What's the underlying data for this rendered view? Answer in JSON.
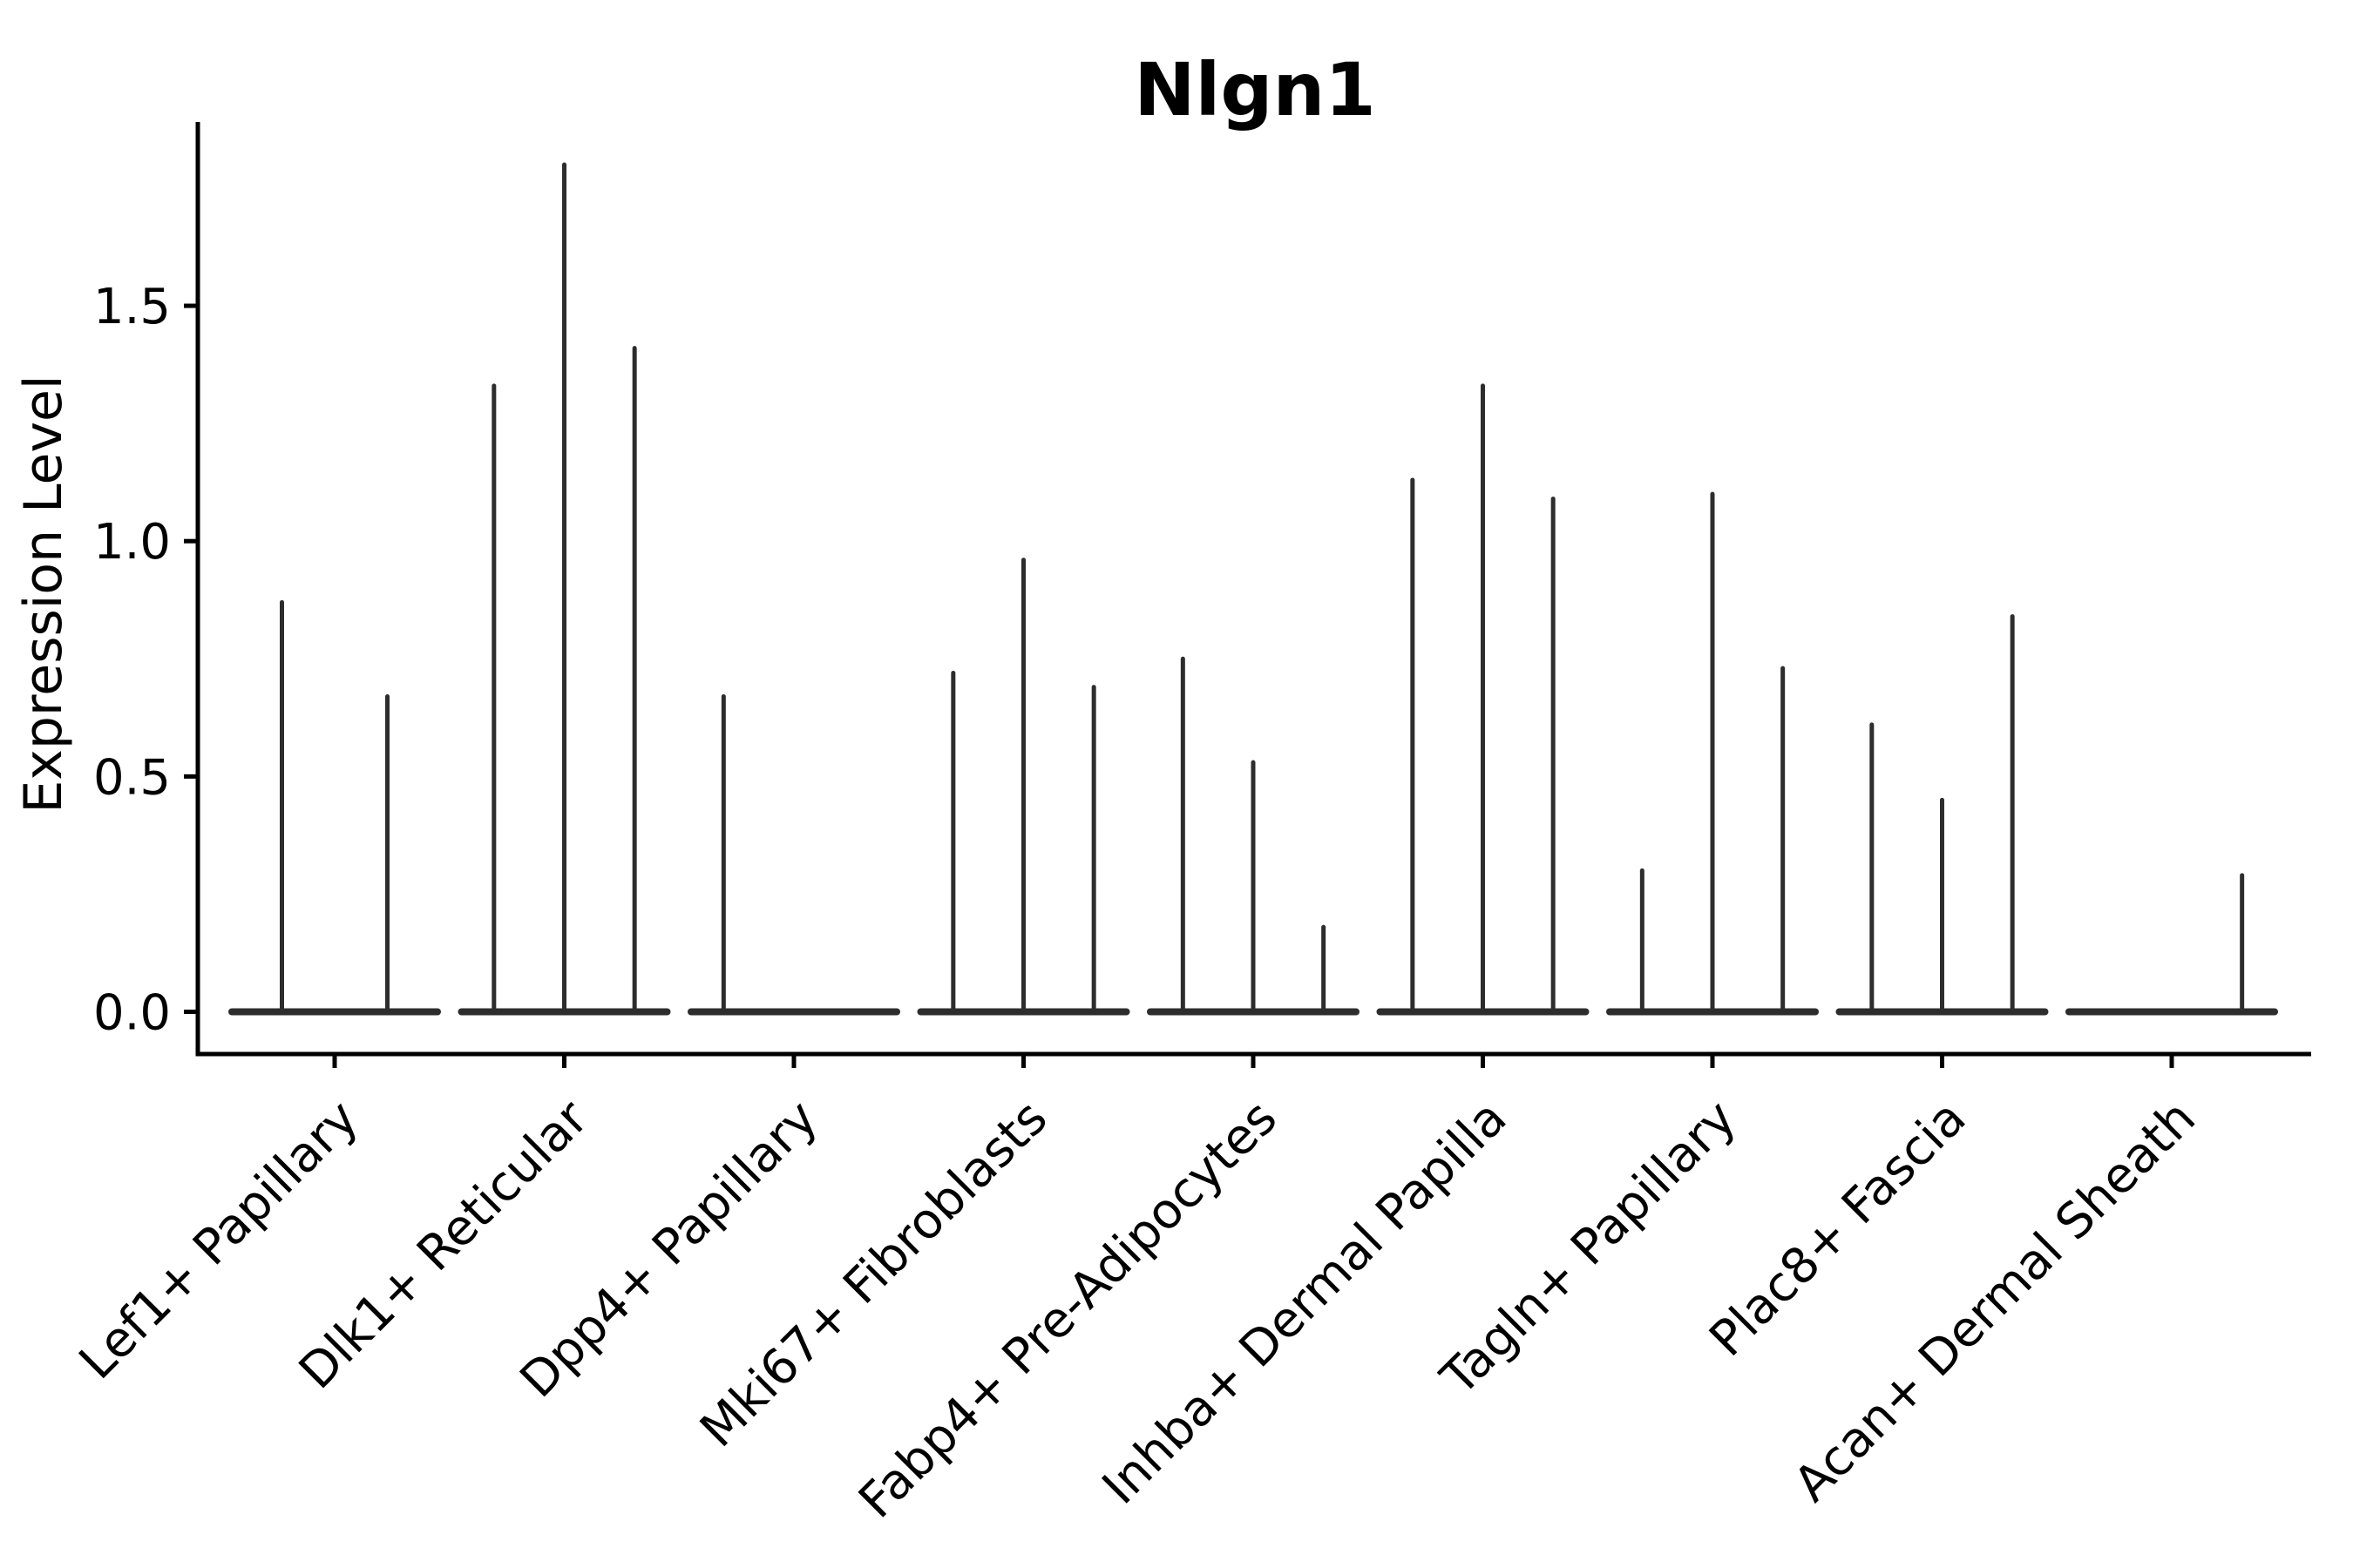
{
  "chart_data": {
    "type": "violin",
    "title": "Nlgn1",
    "xlabel": "",
    "ylabel": "Expression Level",
    "yticks": [
      0.0,
      0.5,
      1.0,
      1.5
    ],
    "ytick_labels": [
      "0.0",
      "0.5",
      "1.0",
      "1.5"
    ],
    "ylim": [
      -0.09,
      1.89
    ],
    "grid": false,
    "legend": "none",
    "x_label_rotation_deg": 45,
    "description": "Violin plot of Nlgn1 expression level per fibroblast cell-type cluster; each cluster slot contains 1-3 extremely narrow violins (bulk of density at 0 with a thin tail up to the max expression value).",
    "categories": [
      {
        "label": "Lef1+ Papillary",
        "violin_max_values": [
          0.87,
          0.67
        ]
      },
      {
        "label": "Dlk1+ Reticular",
        "violin_max_values": [
          1.33,
          1.8,
          1.41
        ]
      },
      {
        "label": "Dpp4+ Papillary",
        "violin_max_values": [
          0.67,
          0.0,
          0.0
        ]
      },
      {
        "label": "Mki67+ Fibroblasts",
        "violin_max_values": [
          0.72,
          0.96,
          0.69
        ]
      },
      {
        "label": "Fabp4+ Pre-Adipocytes",
        "violin_max_values": [
          0.75,
          0.53,
          0.18
        ]
      },
      {
        "label": "Inhba+ Dermal Papilla",
        "violin_max_values": [
          1.13,
          1.33,
          1.09
        ]
      },
      {
        "label": "Tagln+ Papillary",
        "violin_max_values": [
          0.3,
          1.1,
          0.73
        ]
      },
      {
        "label": "Plac8+ Fascia",
        "violin_max_values": [
          0.61,
          0.45,
          0.84
        ]
      },
      {
        "label": "Acan+ Dermal Sheath",
        "violin_max_values": [
          0.0,
          0.0,
          0.29
        ]
      }
    ],
    "style": {
      "violin_color": "#2d2d2d",
      "axis_color": "#000000",
      "background": "#ffffff"
    }
  }
}
